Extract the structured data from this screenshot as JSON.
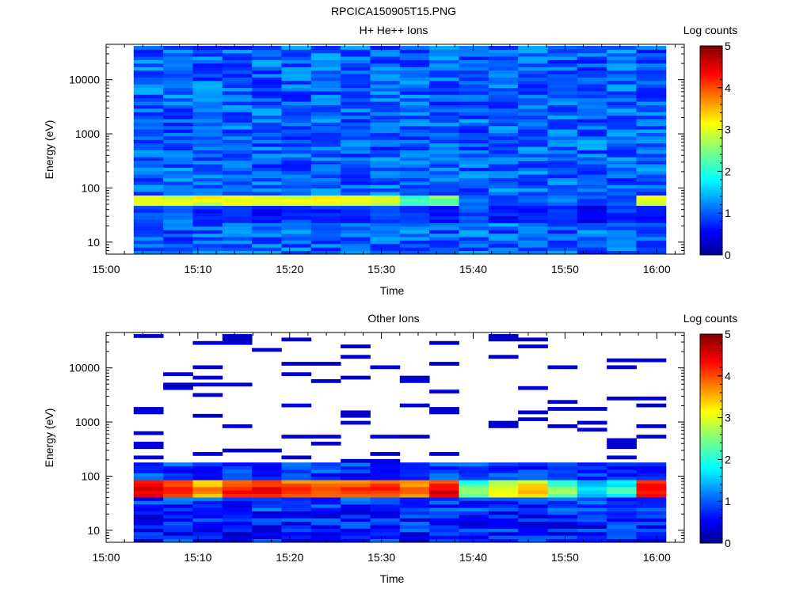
{
  "figure_title": "RPCICA150905T15.PNG",
  "chart_data": [
    {
      "type": "heatmap",
      "title": "H+ He++ Ions",
      "xlabel": "Time",
      "ylabel": "Energy (eV)",
      "y_scale": "log",
      "x_ticks": [
        "15:00",
        "15:10",
        "15:20",
        "15:30",
        "15:40",
        "15:50",
        "16:00"
      ],
      "y_ticks": [
        "10",
        "100",
        "1000",
        "10000"
      ],
      "xlim": [
        "15:00",
        "16:03"
      ],
      "ylim": [
        6,
        45000
      ],
      "colorbar": {
        "label": "Log counts",
        "min": 0,
        "max": 5,
        "ticks": [
          "0",
          "1",
          "2",
          "3",
          "4",
          "5"
        ],
        "colormap": "jet"
      },
      "data_time_range": [
        "15:03",
        "16:01"
      ],
      "data_energy_range_eV": [
        6,
        42000
      ],
      "n_time_bins": 18,
      "n_energy_bins": 60,
      "low_energy_band": {
        "energy_range_eV": [
          22,
          48
        ],
        "values_by_time_bin": [
          1.0,
          1.2,
          0.8,
          0.8,
          0.6,
          0.9,
          0.8,
          0.8,
          0.9,
          0.8,
          0.7,
          1.0,
          0.7,
          0.8,
          0.9,
          0.6,
          0.9,
          0.8
        ]
      },
      "peak_band": {
        "energy_range_eV": [
          48,
          72
        ],
        "values_by_time_bin": [
          2.9,
          3.0,
          3.0,
          3.0,
          3.0,
          3.0,
          3.0,
          3.0,
          3.0,
          2.3,
          2.5,
          1.0,
          1.1,
          1.0,
          1.1,
          1.0,
          0.9,
          3.0
        ]
      },
      "background_level": 1.1
    },
    {
      "type": "heatmap",
      "title": "Other Ions",
      "xlabel": "Time",
      "ylabel": "Energy (eV)",
      "y_scale": "log",
      "x_ticks": [
        "15:00",
        "15:10",
        "15:20",
        "15:30",
        "15:40",
        "15:50",
        "16:00"
      ],
      "y_ticks": [
        "10",
        "100",
        "1000",
        "10000"
      ],
      "xlim": [
        "15:00",
        "16:03"
      ],
      "ylim": [
        6,
        45000
      ],
      "colorbar": {
        "label": "Log counts",
        "min": 0,
        "max": 5,
        "ticks": [
          "0",
          "1",
          "2",
          "3",
          "4",
          "5"
        ],
        "colormap": "jet"
      },
      "data_time_range": [
        "15:03",
        "16:01"
      ],
      "data_energy_range_eV": [
        6,
        42000
      ],
      "n_time_bins": 18,
      "n_energy_bins": 60,
      "peak_band": {
        "energy_range_eV": [
          38,
          80
        ],
        "values_by_time_bin": [
          4.6,
          4.4,
          3.8,
          4.4,
          4.5,
          4.3,
          4.2,
          4.3,
          4.3,
          4.0,
          4.6,
          2.5,
          3.2,
          3.5,
          2.6,
          1.8,
          2.2,
          4.5
        ]
      },
      "continuum_band_eV": [
        22,
        180
      ],
      "sparse_band_eV": [
        180,
        42000
      ],
      "background_level": 0.3
    }
  ]
}
